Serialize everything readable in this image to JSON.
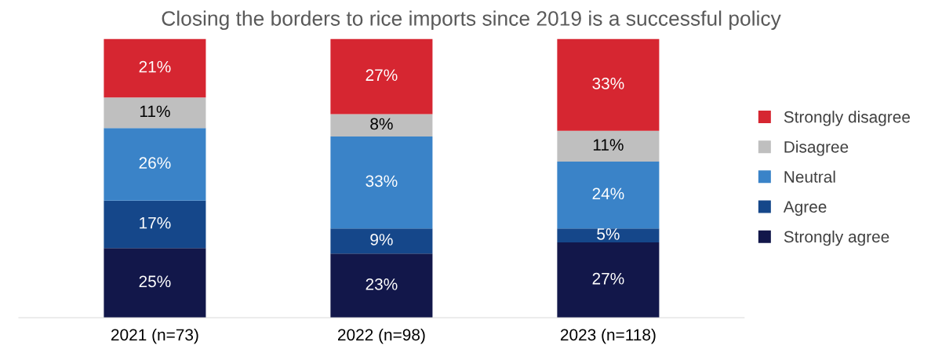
{
  "chart_data": {
    "type": "bar",
    "stacked": true,
    "title": "Closing the borders to rice imports since 2019 is a successful policy",
    "categories": [
      "2021 (n=73)",
      "2022 (n=98)",
      "2023 (n=118)"
    ],
    "series": [
      {
        "name": "Strongly agree",
        "color": "#12174a",
        "values": [
          25,
          23,
          27
        ],
        "value_labels": [
          "25%",
          "23%",
          "27%"
        ]
      },
      {
        "name": "Agree",
        "color": "#15478a",
        "values": [
          17,
          9,
          5
        ],
        "value_labels": [
          "17%",
          "9%",
          "5%"
        ]
      },
      {
        "name": "Neutral",
        "color": "#3a83c8",
        "values": [
          26,
          33,
          24
        ],
        "value_labels": [
          "26%",
          "33%",
          "24%"
        ]
      },
      {
        "name": "Disagree",
        "color": "#bfbfbf",
        "values": [
          11,
          8,
          11
        ],
        "value_labels": [
          "11%",
          "8%",
          "11%"
        ]
      },
      {
        "name": "Strongly disagree",
        "color": "#d62631",
        "values": [
          21,
          27,
          33
        ],
        "value_labels": [
          "21%",
          "27%",
          "33%"
        ]
      }
    ],
    "legend": "right",
    "grid": false
  }
}
